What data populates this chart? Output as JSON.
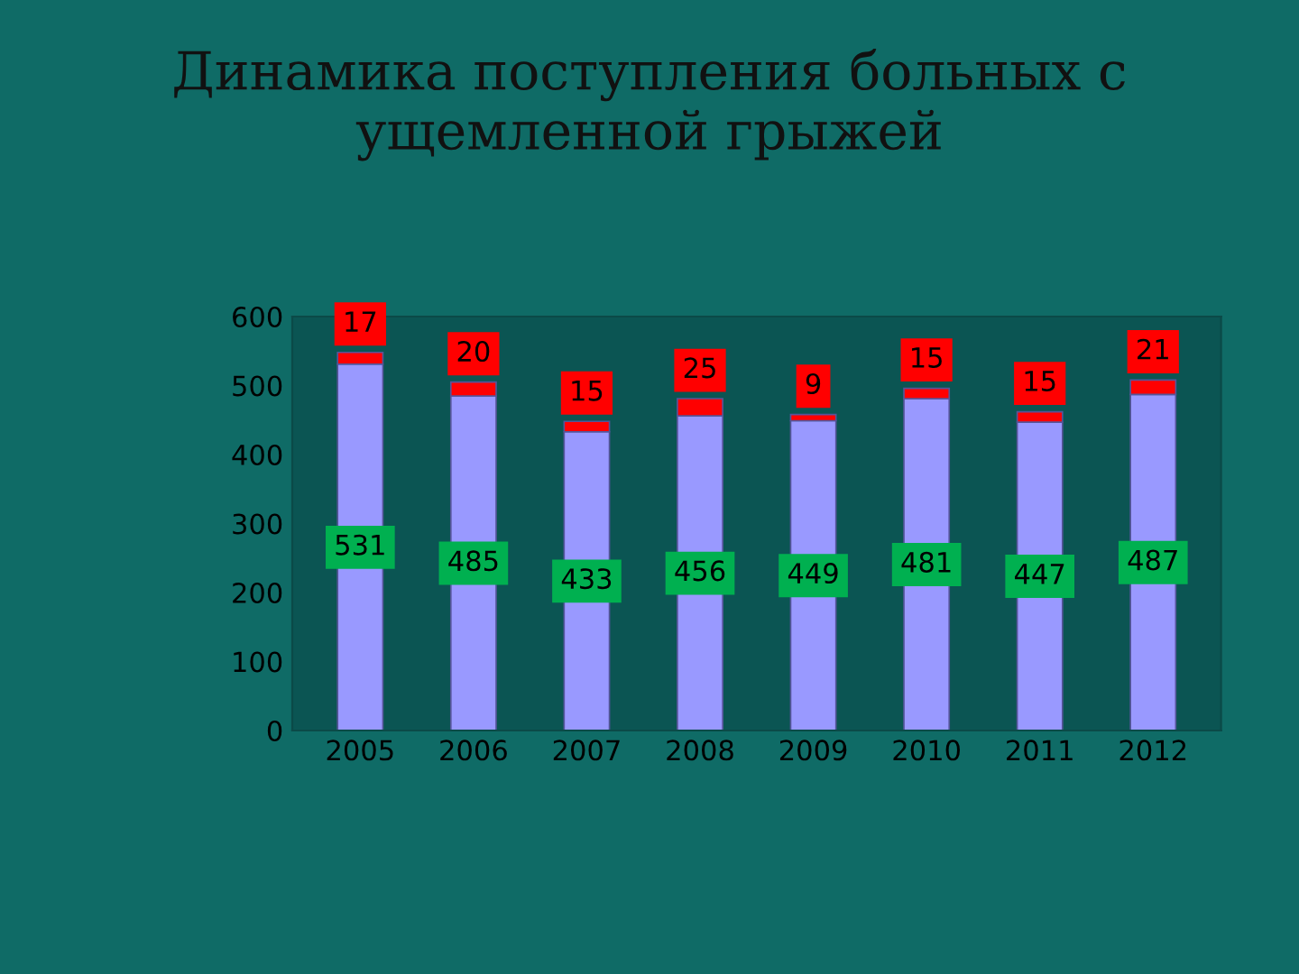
{
  "chart_data": {
    "type": "bar",
    "title": "Динамика поступления больных с\nущемленной грыжей",
    "categories": [
      "2005",
      "2006",
      "2007",
      "2008",
      "2009",
      "2010",
      "2011",
      "2012"
    ],
    "stacked": true,
    "data_labels": true,
    "series": [
      {
        "color": "#9999ff",
        "values": [
          531,
          485,
          433,
          456,
          449,
          481,
          447,
          487
        ]
      },
      {
        "color": "#ff0000",
        "values": [
          17,
          20,
          15,
          25,
          9,
          15,
          15,
          21
        ]
      }
    ],
    "ylim": [
      0,
      600
    ],
    "yticks": [
      0,
      100,
      200,
      300,
      400,
      500,
      600
    ],
    "grid": false,
    "legend": false
  }
}
